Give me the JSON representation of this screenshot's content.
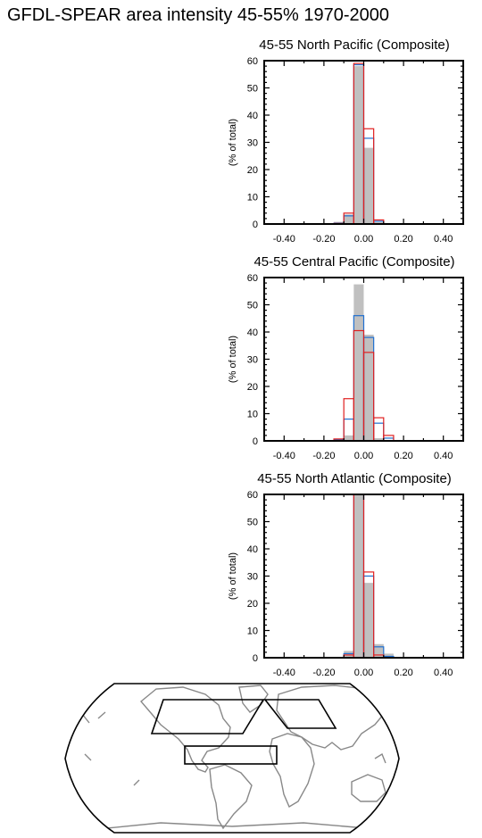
{
  "title": "GFDL-SPEAR area intensity 45-55% 1970-2000",
  "colors": {
    "gray": "#c0c0c0",
    "blue": "#1f6fd0",
    "red": "#e02020",
    "coast": "#888888"
  },
  "chart_data": [
    {
      "type": "bar",
      "title": "45-55 North Pacific (Composite)",
      "ylabel": "(% of total)",
      "xlim": [
        -0.5,
        0.5
      ],
      "ylim": [
        0,
        60
      ],
      "xticks": [
        -0.4,
        -0.2,
        0.0,
        0.2,
        0.4
      ],
      "xtick_labels": [
        "-0.40",
        "-0.20",
        "0.00",
        "0.20",
        "0.40"
      ],
      "yticks": [
        0,
        10,
        20,
        30,
        40,
        50,
        60
      ],
      "bin_width": 0.05,
      "bin_centers": [
        -0.125,
        -0.075,
        -0.025,
        0.025,
        0.075
      ],
      "series": [
        {
          "values": [
            0.8,
            3.5,
            58.0,
            28.0,
            0.7
          ]
        },
        {
          "values": [
            0.3,
            3.0,
            58.5,
            31.5,
            1.0
          ]
        },
        {
          "values": [
            0.2,
            4.0,
            59.0,
            35.0,
            1.5
          ]
        }
      ]
    },
    {
      "type": "bar",
      "title": "45-55 Central Pacific (Composite)",
      "ylabel": "(% of total)",
      "xlim": [
        -0.5,
        0.5
      ],
      "ylim": [
        0,
        60
      ],
      "xticks": [
        -0.4,
        -0.2,
        0.0,
        0.2,
        0.4
      ],
      "xtick_labels": [
        "-0.40",
        "-0.20",
        "0.00",
        "0.20",
        "0.40"
      ],
      "yticks": [
        0,
        10,
        20,
        30,
        40,
        50,
        60
      ],
      "bin_width": 0.05,
      "bin_centers": [
        -0.125,
        -0.075,
        -0.025,
        0.025,
        0.075,
        0.125
      ],
      "series": [
        {
          "values": [
            0.3,
            2.0,
            57.5,
            39.0,
            1.0,
            0.2
          ]
        },
        {
          "values": [
            0.5,
            8.0,
            46.0,
            38.0,
            6.5,
            1.0
          ]
        },
        {
          "values": [
            0.7,
            15.5,
            40.5,
            32.5,
            8.5,
            2.0
          ]
        }
      ]
    },
    {
      "type": "bar",
      "title": "45-55 North Atlantic (Composite)",
      "ylabel": "(% of total)",
      "xlim": [
        -0.5,
        0.5
      ],
      "ylim": [
        0,
        60
      ],
      "xticks": [
        -0.4,
        -0.2,
        0.0,
        0.2,
        0.4
      ],
      "xtick_labels": [
        "-0.40",
        "-0.20",
        "0.00",
        "0.20",
        "0.40"
      ],
      "yticks": [
        0,
        10,
        20,
        30,
        40,
        50,
        60
      ],
      "bin_width": 0.05,
      "bin_centers": [
        -0.125,
        -0.075,
        -0.025,
        0.025,
        0.075,
        0.125
      ],
      "series": [
        {
          "values": [
            0.0,
            2.5,
            60.0,
            27.5,
            5.0,
            1.5
          ]
        },
        {
          "values": [
            0.0,
            1.5,
            60.0,
            30.0,
            4.0,
            0.5
          ]
        },
        {
          "values": [
            0.0,
            1.0,
            60.0,
            31.5,
            1.0,
            0.0
          ]
        }
      ]
    }
  ],
  "map": {
    "projection": "Robinson",
    "boxes": [
      "North Pacific",
      "North Atlantic",
      "Central Pacific"
    ]
  }
}
